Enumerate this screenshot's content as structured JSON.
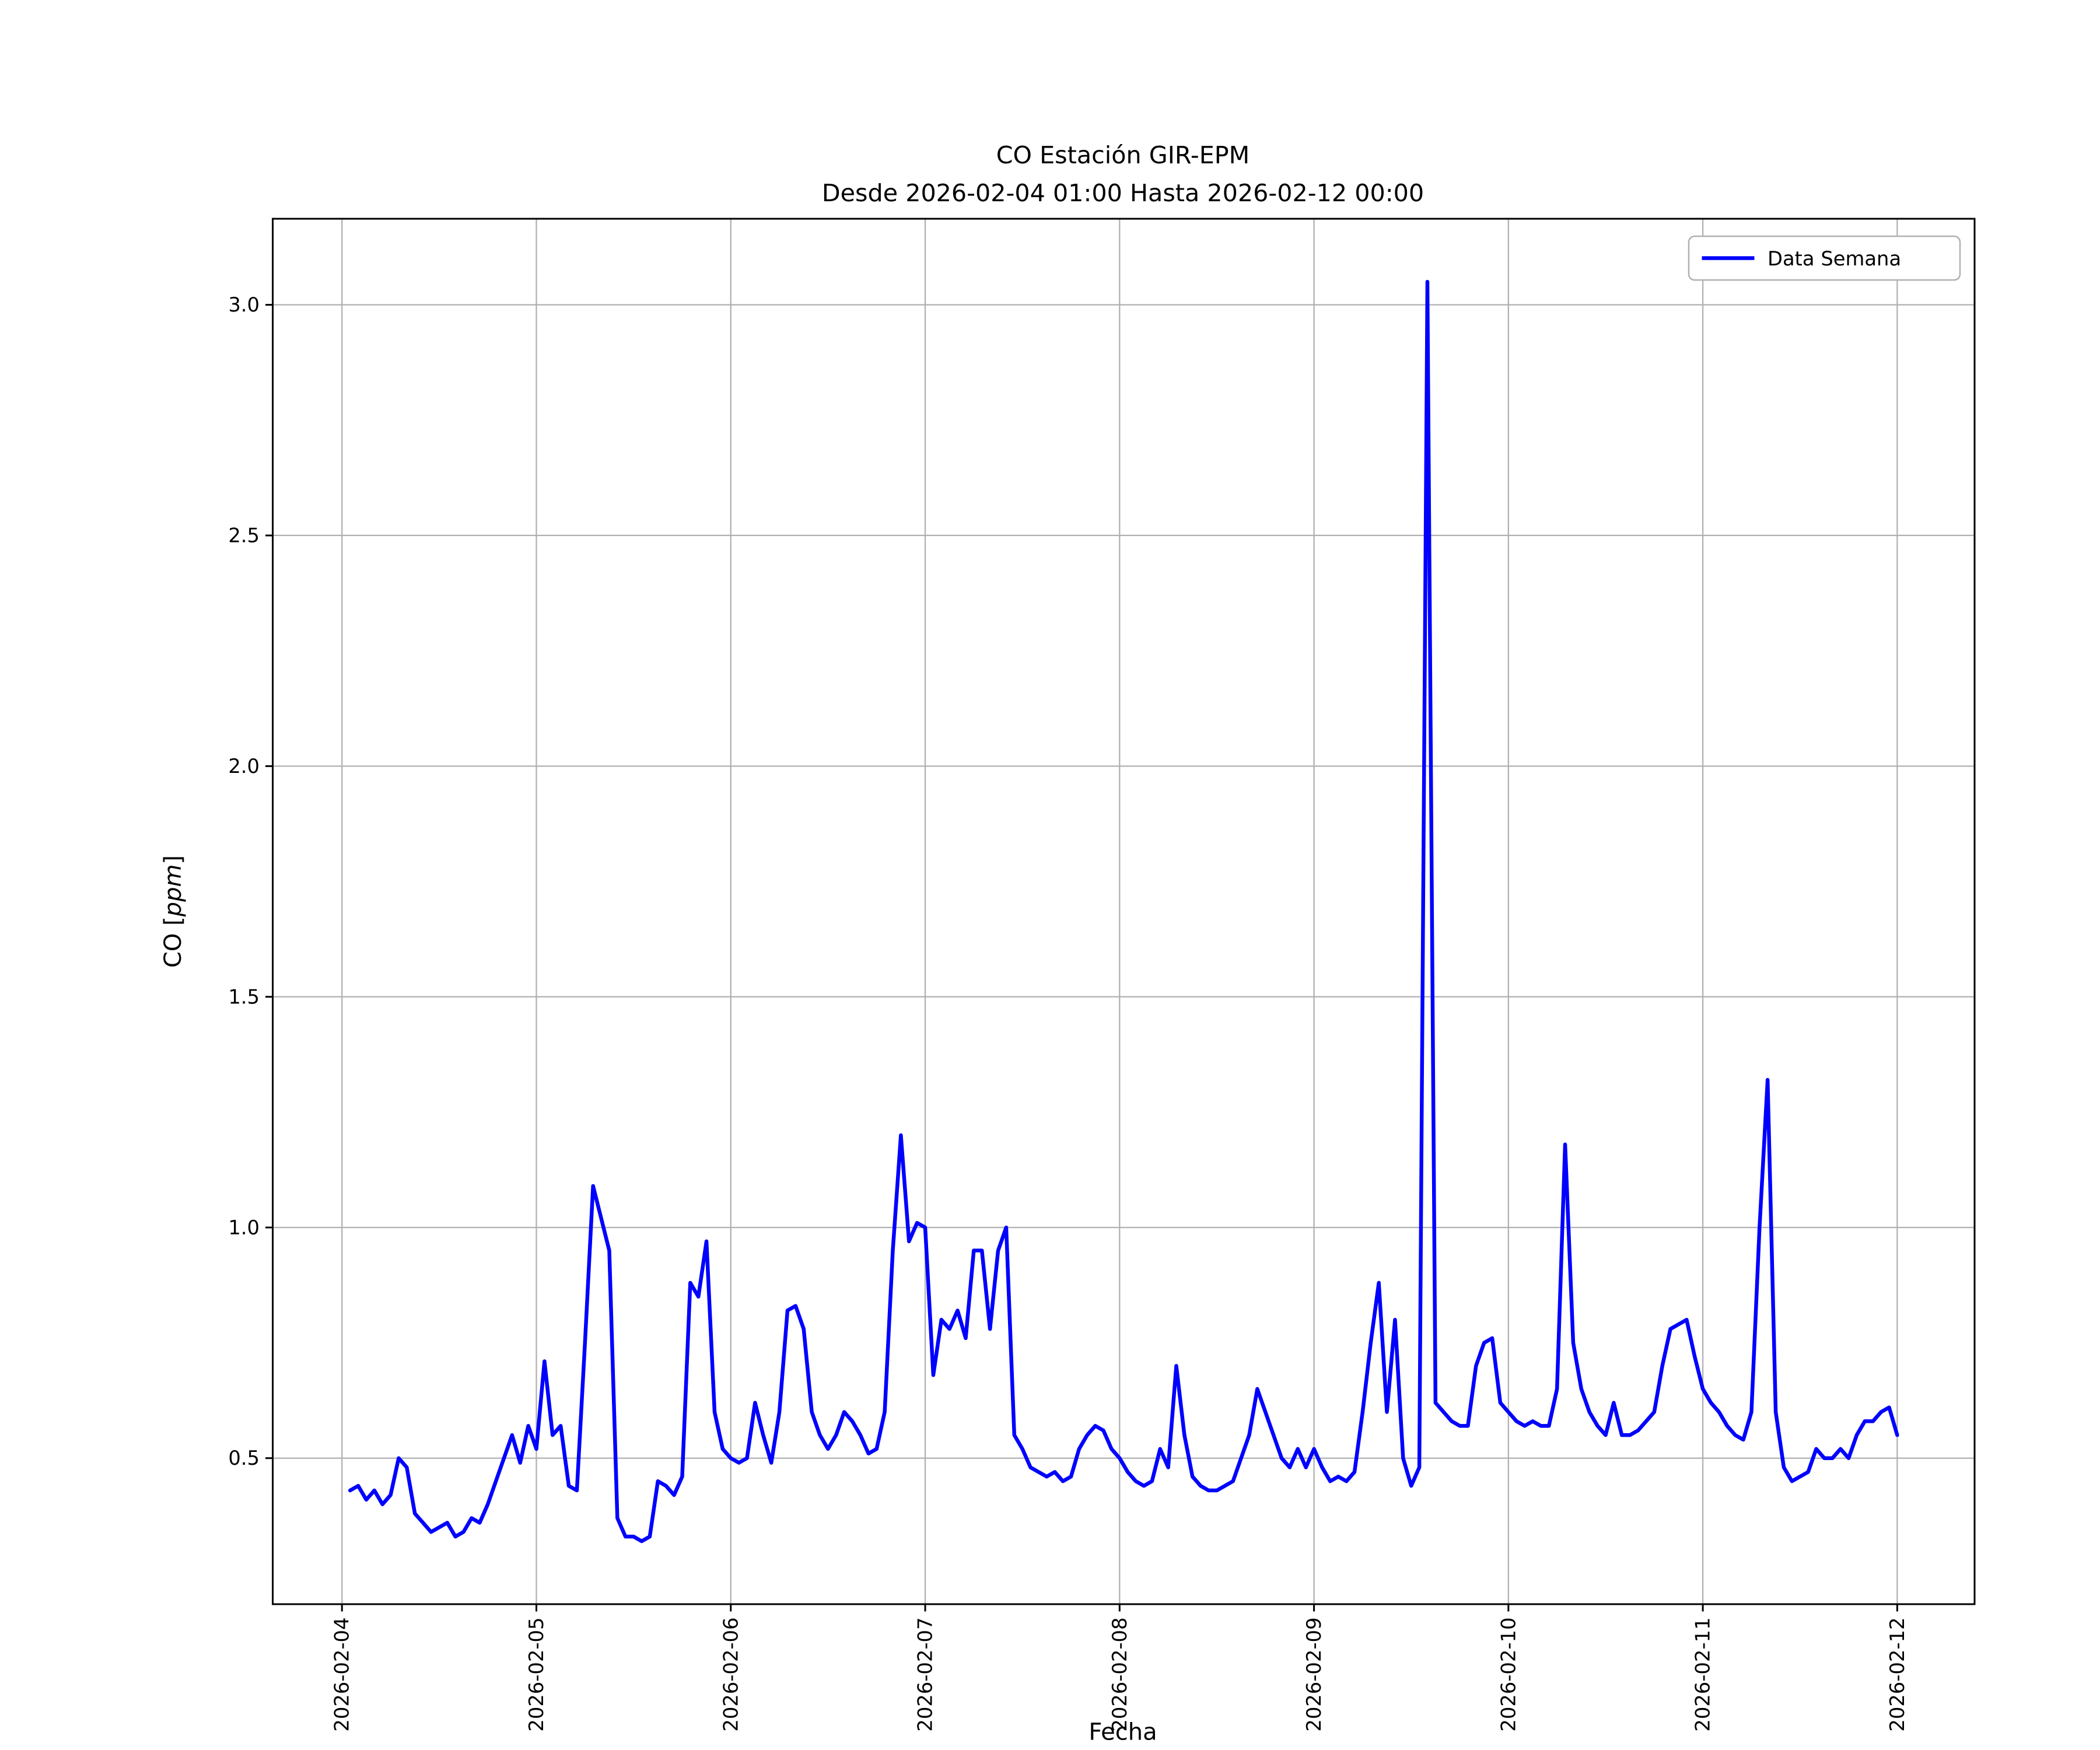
{
  "chart_data": {
    "type": "line",
    "title": "CO Estación GIR-EPM",
    "subtitle": "Desde 2026-02-04 01:00 Hasta 2026-02-12 00:00",
    "xlabel": "Fecha",
    "ylabel": "CO [ppm]",
    "ylabel_parts": [
      "CO [",
      "ppm",
      "]"
    ],
    "legend": [
      "Data Semana"
    ],
    "legend_position": "upper right",
    "line_color": "#0000ff",
    "grid": true,
    "x_start": "2026-02-04 01:00",
    "x_end": "2026-02-12 00:00",
    "x_interval_hours": 1,
    "x_tick_labels": [
      "2026-02-04",
      "2026-02-05",
      "2026-02-06",
      "2026-02-07",
      "2026-02-08",
      "2026-02-09",
      "2026-02-10",
      "2026-02-11",
      "2026-02-12"
    ],
    "y_ticks": [
      0.5,
      1.0,
      1.5,
      2.0,
      2.5,
      3.0
    ],
    "ylim": [
      0.18,
      3.19
    ],
    "values": [
      0.43,
      0.44,
      0.41,
      0.43,
      0.4,
      0.42,
      0.5,
      0.48,
      0.38,
      0.36,
      0.34,
      0.35,
      0.36,
      0.33,
      0.34,
      0.37,
      0.36,
      0.4,
      0.45,
      0.5,
      0.55,
      0.49,
      0.57,
      0.52,
      0.71,
      0.55,
      0.57,
      0.44,
      0.43,
      0.75,
      1.09,
      1.02,
      0.95,
      0.37,
      0.33,
      0.33,
      0.32,
      0.33,
      0.45,
      0.44,
      0.42,
      0.46,
      0.88,
      0.85,
      0.97,
      0.6,
      0.52,
      0.5,
      0.49,
      0.5,
      0.62,
      0.55,
      0.49,
      0.6,
      0.82,
      0.83,
      0.78,
      0.6,
      0.55,
      0.52,
      0.55,
      0.6,
      0.58,
      0.55,
      0.51,
      0.52,
      0.6,
      0.95,
      1.2,
      0.97,
      1.01,
      1.0,
      0.68,
      0.8,
      0.78,
      0.82,
      0.76,
      0.95,
      0.95,
      0.78,
      0.95,
      1.0,
      0.55,
      0.52,
      0.48,
      0.47,
      0.46,
      0.47,
      0.45,
      0.46,
      0.52,
      0.55,
      0.57,
      0.56,
      0.52,
      0.5,
      0.47,
      0.45,
      0.44,
      0.45,
      0.52,
      0.48,
      0.7,
      0.55,
      0.46,
      0.44,
      0.43,
      0.43,
      0.44,
      0.45,
      0.5,
      0.55,
      0.65,
      0.6,
      0.55,
      0.5,
      0.48,
      0.52,
      0.48,
      0.52,
      0.48,
      0.45,
      0.46,
      0.45,
      0.47,
      0.6,
      0.75,
      0.88,
      0.6,
      0.8,
      0.5,
      0.44,
      0.48,
      3.05,
      0.62,
      0.6,
      0.58,
      0.57,
      0.57,
      0.7,
      0.75,
      0.76,
      0.62,
      0.6,
      0.58,
      0.57,
      0.58,
      0.57,
      0.57,
      0.65,
      1.18,
      0.75,
      0.65,
      0.6,
      0.57,
      0.55,
      0.62,
      0.55,
      0.55,
      0.56,
      0.58,
      0.6,
      0.7,
      0.78,
      0.79,
      0.8,
      0.72,
      0.65,
      0.62,
      0.6,
      0.57,
      0.55,
      0.54,
      0.6,
      1.0,
      1.32,
      0.6,
      0.48,
      0.45,
      0.46,
      0.47,
      0.52,
      0.5,
      0.5,
      0.52,
      0.5,
      0.55,
      0.58,
      0.58,
      0.6,
      0.61,
      0.55
    ]
  }
}
